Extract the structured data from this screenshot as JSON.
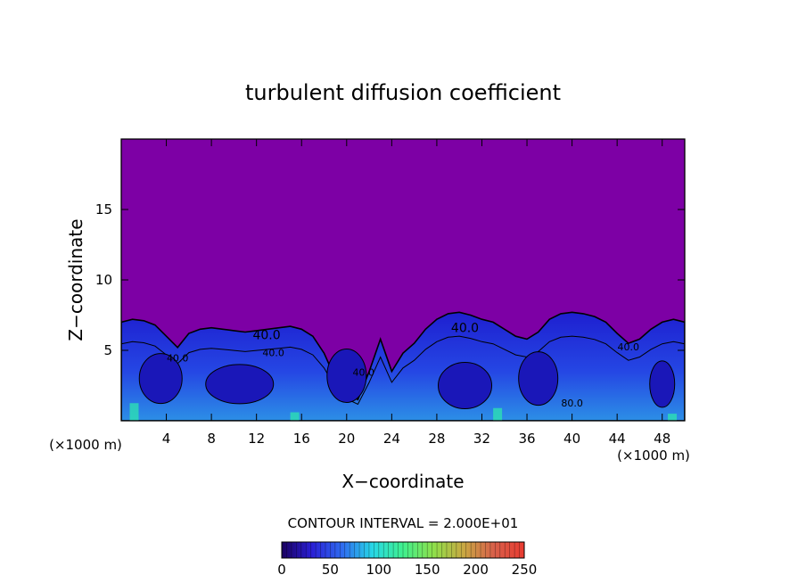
{
  "chart_data": {
    "type": "heatmap",
    "title": "turbulent diffusion coefficient",
    "xlabel": "X−coordinate",
    "ylabel": "Z−coordinate",
    "x_unit": "(×1000 m)",
    "y_unit": "(×1000 m)",
    "xlim": [
      0,
      50
    ],
    "ylim": [
      0,
      20
    ],
    "x_ticks": [
      "4",
      "8",
      "12",
      "16",
      "20",
      "24",
      "28",
      "32",
      "36",
      "40",
      "44",
      "48"
    ],
    "y_ticks": [
      "5",
      "10",
      "15"
    ],
    "contour_interval_text": "CONTOUR INTERVAL = 2.000E+01",
    "contour_labels": [
      "40.0",
      "40.0",
      "40.0",
      "80.0",
      "40.0",
      "40.0",
      "40.0"
    ],
    "colorbar": {
      "min": 0,
      "max": 250,
      "tick_labels": [
        "0",
        "50",
        "100",
        "150",
        "200",
        "250"
      ],
      "colors": [
        "#1a0060",
        "#2a1fd6",
        "#2f6cf0",
        "#27d8e6",
        "#3ff08e",
        "#8ee04a",
        "#c9a842",
        "#d8604a",
        "#e83a30"
      ]
    },
    "background_value_color": "#7d00a5",
    "series": [
      {
        "x": [
          0,
          1,
          2,
          3,
          4,
          5,
          6,
          7,
          8,
          9,
          10,
          11,
          12,
          13,
          14,
          15,
          16,
          17,
          18,
          19,
          20,
          21,
          22,
          23,
          24,
          25,
          26,
          27,
          28,
          29,
          30,
          31,
          32,
          33,
          34,
          35,
          36,
          37,
          38,
          39,
          40,
          41,
          42,
          43,
          44,
          45,
          46,
          47,
          48,
          49,
          50
        ],
        "y": [
          7.0,
          7.2,
          7.1,
          6.8,
          6.0,
          5.2,
          6.2,
          6.5,
          6.6,
          6.5,
          6.4,
          6.3,
          6.4,
          6.5,
          6.6,
          6.7,
          6.5,
          6.0,
          4.8,
          3.0,
          2.0,
          1.5,
          3.5,
          5.8,
          3.5,
          4.8,
          5.5,
          6.5,
          7.2,
          7.6,
          7.7,
          7.5,
          7.2,
          7.0,
          6.5,
          6.0,
          5.8,
          6.3,
          7.2,
          7.6,
          7.7,
          7.6,
          7.4,
          7.0,
          6.2,
          5.5,
          5.8,
          6.5,
          7.0,
          7.2,
          7.0
        ]
      }
    ]
  }
}
